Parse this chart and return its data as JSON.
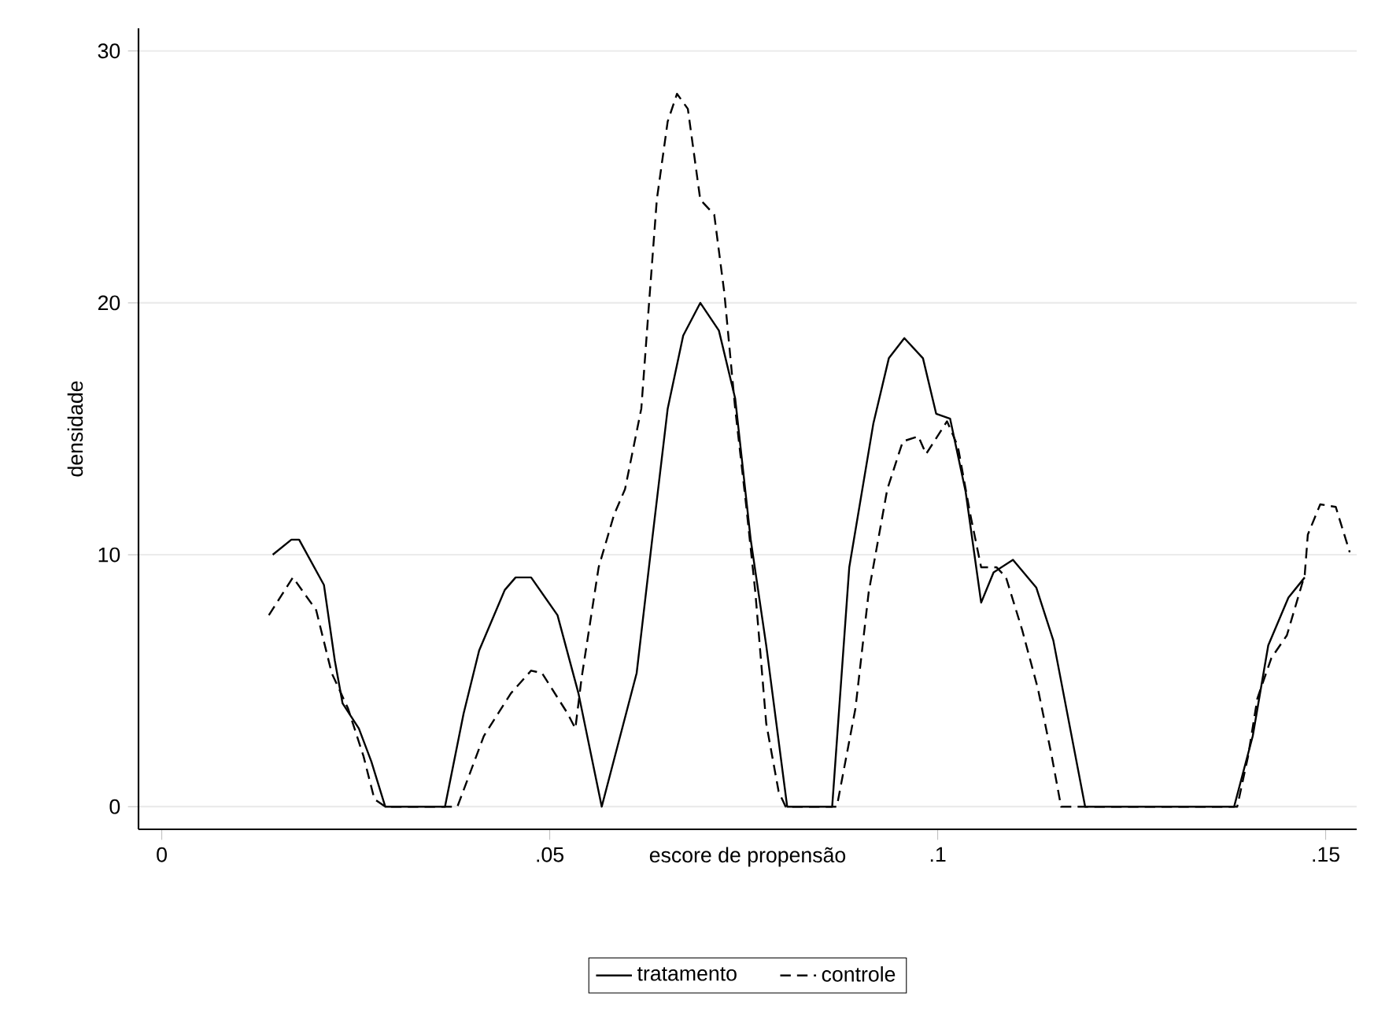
{
  "chart_data": {
    "type": "line",
    "xlabel": "escore de propensão",
    "ylabel": "densidade",
    "xlim": [
      -0.003,
      0.154
    ],
    "ylim": [
      -0.9,
      30.9
    ],
    "xticks": [
      0,
      {
        "value": 0.05,
        "label": ".05"
      },
      {
        "value": 0.1,
        "label": ".1"
      },
      {
        "value": 0.15,
        "label": ".15"
      }
    ],
    "yticks": [
      0,
      10,
      20,
      30
    ],
    "grid": "y",
    "legend": "bottom",
    "marker": "none",
    "series": [
      {
        "name": "tratamento",
        "color": "#000000",
        "line_style": "solid",
        "x": [
          0.0143,
          0.0167,
          0.0177,
          0.0209,
          0.0223,
          0.0233,
          0.0254,
          0.027,
          0.0288,
          0.0365,
          0.0389,
          0.0409,
          0.0442,
          0.0456,
          0.0476,
          0.051,
          0.0537,
          0.0567,
          0.0612,
          0.0632,
          0.0652,
          0.0672,
          0.0694,
          0.0718,
          0.0739,
          0.0759,
          0.0779,
          0.0806,
          0.0864,
          0.0886,
          0.0917,
          0.0937,
          0.0957,
          0.0981,
          0.0998,
          0.1016,
          0.1036,
          0.1056,
          0.1072,
          0.1097,
          0.1127,
          0.1149,
          0.119,
          0.1382,
          0.1406,
          0.1426,
          0.1452,
          0.1473
        ],
        "values": [
          10.0,
          10.6,
          10.6,
          8.8,
          5.8,
          4.1,
          3.1,
          1.8,
          0,
          0,
          3.7,
          6.2,
          8.6,
          9.1,
          9.1,
          7.6,
          4.5,
          0,
          5.3,
          10.6,
          15.8,
          18.7,
          20.0,
          18.9,
          16.2,
          10.6,
          6.4,
          0,
          0,
          9.5,
          15.2,
          17.8,
          18.6,
          17.8,
          15.6,
          15.4,
          12.5,
          8.1,
          9.3,
          9.8,
          8.7,
          6.6,
          0,
          0,
          2.8,
          6.4,
          8.3,
          9.1
        ]
      },
      {
        "name": "controle",
        "color": "#000000",
        "line_style": "dashed",
        "x": [
          0.0138,
          0.0169,
          0.0199,
          0.0219,
          0.024,
          0.026,
          0.0274,
          0.0288,
          0.0381,
          0.0415,
          0.045,
          0.0476,
          0.049,
          0.0523,
          0.0533,
          0.0541,
          0.0563,
          0.0583,
          0.0597,
          0.0618,
          0.0628,
          0.0638,
          0.0652,
          0.0664,
          0.0678,
          0.0694,
          0.0712,
          0.0725,
          0.0739,
          0.0753,
          0.0765,
          0.0779,
          0.0795,
          0.0804,
          0.087,
          0.0894,
          0.0911,
          0.0935,
          0.0955,
          0.0975,
          0.0985,
          0.1012,
          0.1026,
          0.1042,
          0.1056,
          0.1076,
          0.1088,
          0.1109,
          0.1129,
          0.1147,
          0.1159,
          0.1386,
          0.14,
          0.1412,
          0.143,
          0.145,
          0.1473,
          0.1477,
          0.1493,
          0.1513,
          0.1531
        ],
        "values": [
          7.6,
          9.1,
          7.8,
          5.3,
          3.9,
          2.0,
          0.3,
          0,
          0,
          2.8,
          4.5,
          5.4,
          5.3,
          3.7,
          3.1,
          5.1,
          9.5,
          11.6,
          12.6,
          15.8,
          20.0,
          24.1,
          27.2,
          28.3,
          27.7,
          24.1,
          23.5,
          20.4,
          15.8,
          12.0,
          8.5,
          3.3,
          0.6,
          0,
          0,
          3.9,
          8.5,
          12.6,
          14.5,
          14.7,
          14.0,
          15.3,
          14.3,
          11.6,
          9.5,
          9.5,
          9.1,
          7.0,
          4.7,
          2.0,
          0,
          0,
          2.0,
          4.3,
          5.9,
          6.8,
          9.2,
          10.8,
          12.0,
          11.9,
          10.1
        ]
      }
    ]
  }
}
